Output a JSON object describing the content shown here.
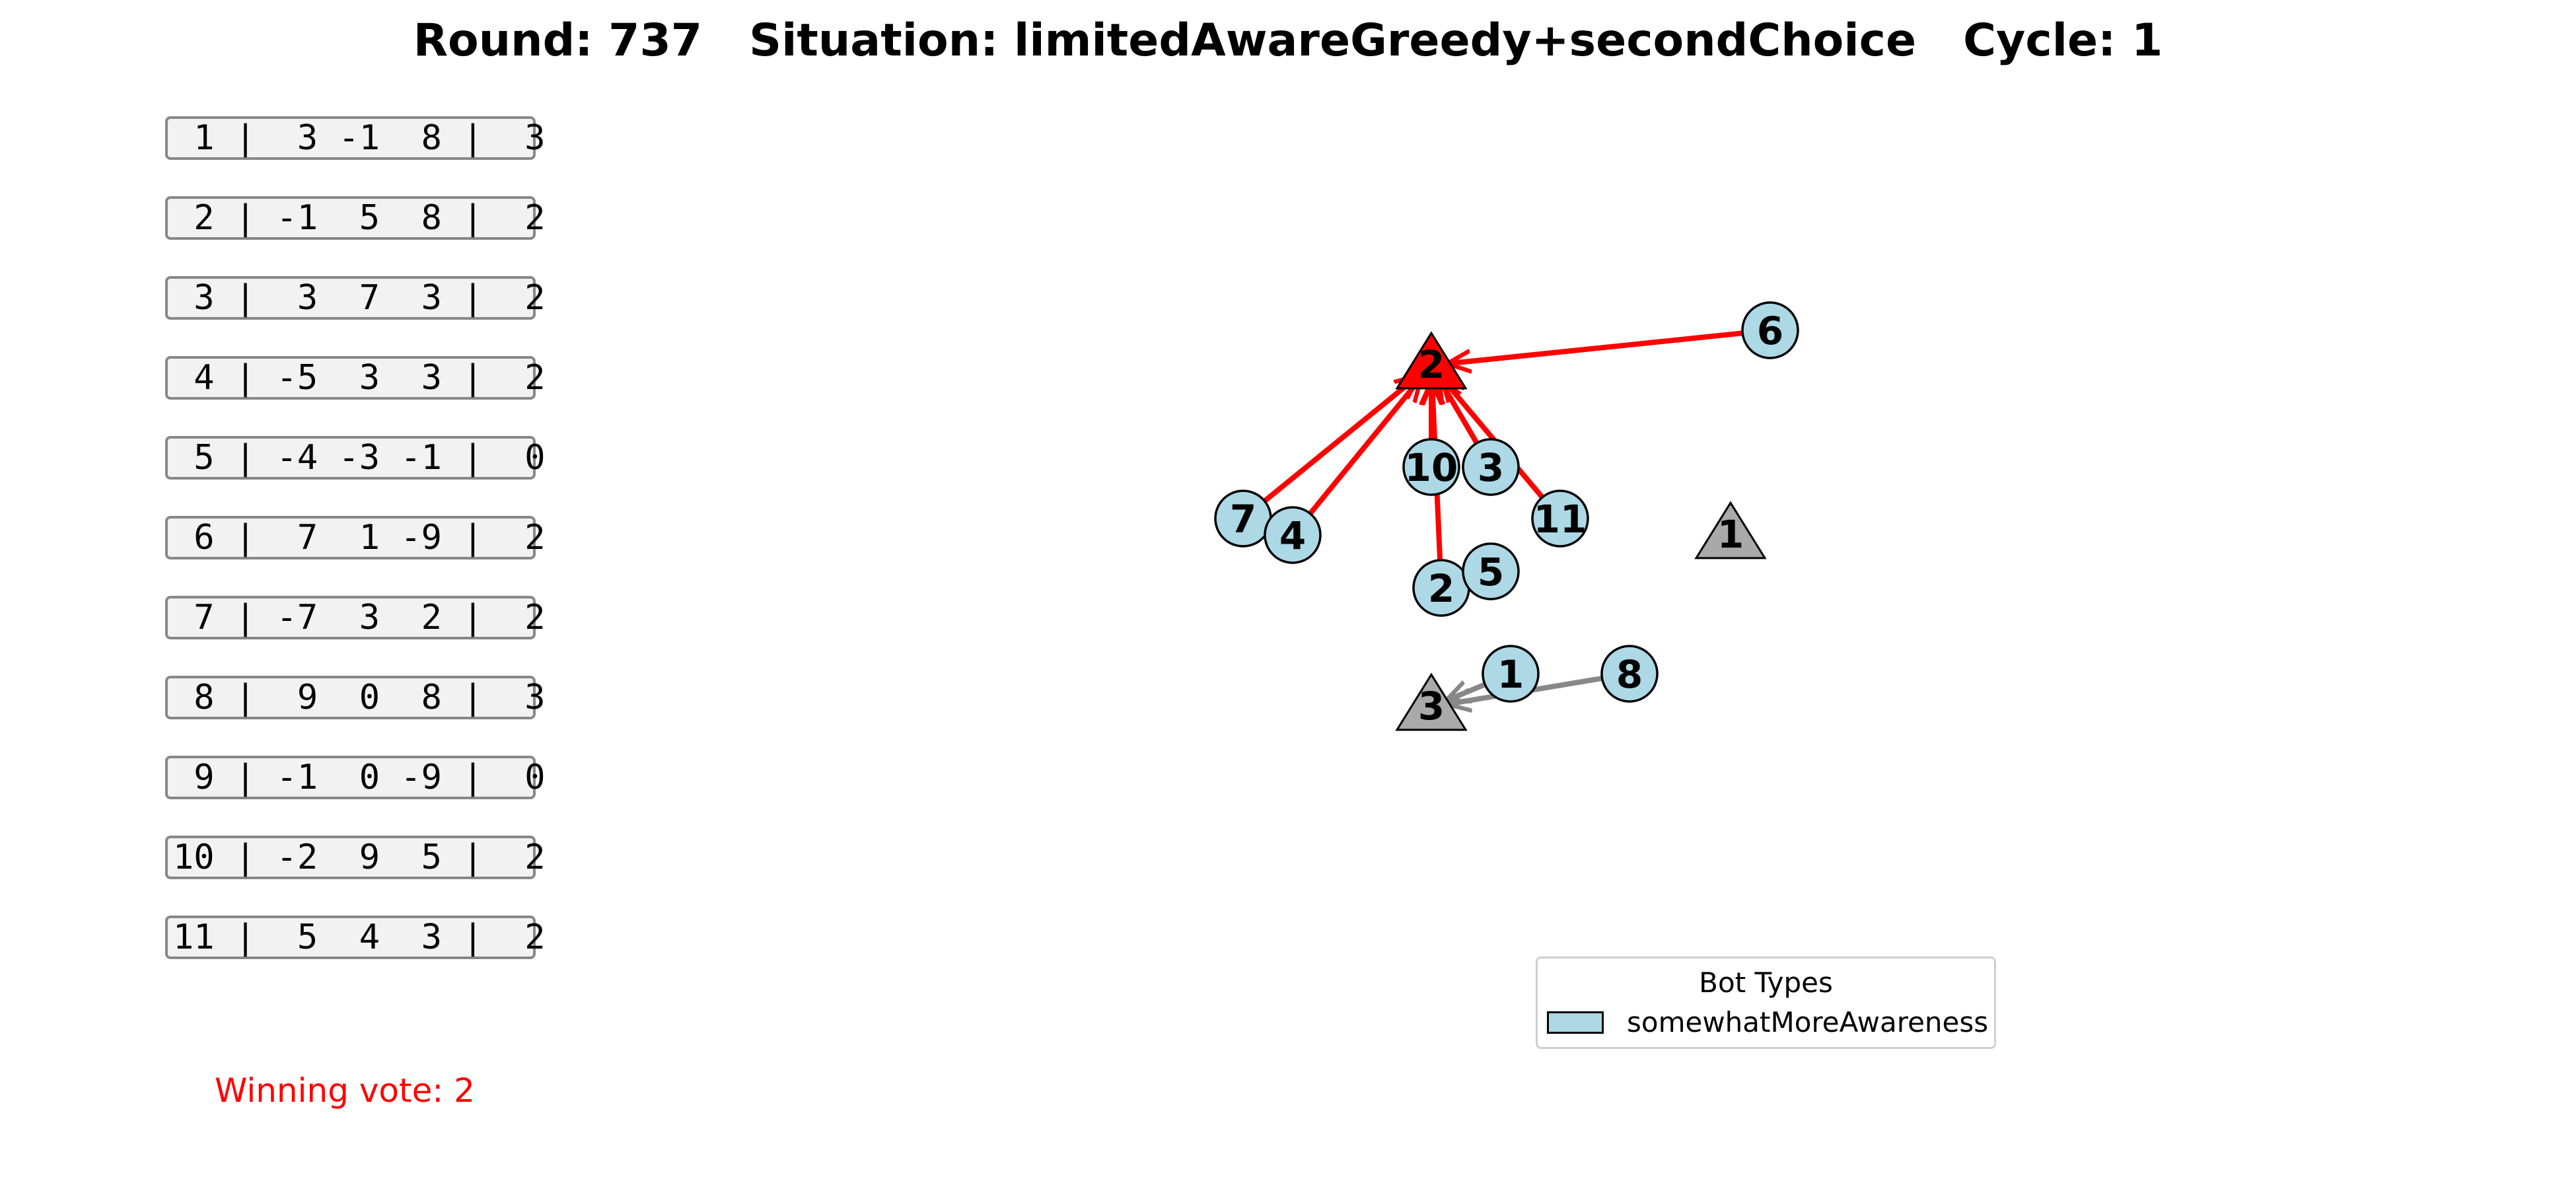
{
  "title": {
    "round": "Round: 737",
    "situation": "Situation: limitedAwareGreedy+secondChoice",
    "cycle": "Cycle: 1"
  },
  "vote_rows": [
    " 1 |  3 -1  8 |  3",
    " 2 | -1  5  8 |  2",
    " 3 |  3  7  3 |  2",
    " 4 | -5  3  3 |  2",
    " 5 | -4 -3 -1 |  0",
    " 6 |  7  1 -9 |  2",
    " 7 | -7  3  2 |  2",
    " 8 |  9  0  8 |  3",
    " 9 | -1  0 -9 |  0",
    "10 | -2  9  5 |  2",
    "11 |  5  4  3 |  2"
  ],
  "winning_vote": "Winning vote: 2",
  "legend": {
    "title": "Bot Types",
    "label": "somewhatMoreAwareness"
  },
  "colors": {
    "bot_fill": "#add8e6",
    "winner_fill": "#ff0000",
    "option_fill": "#a9a9a9",
    "winner_edge": "#ff0000",
    "other_edge": "#888888"
  },
  "graph": {
    "options": [
      {
        "label": "2",
        "winner": true
      },
      {
        "label": "1",
        "winner": false
      },
      {
        "label": "3",
        "winner": false
      }
    ],
    "bots": [
      "6",
      "10",
      "3",
      "7",
      "4",
      "11",
      "2",
      "5",
      "1",
      "8"
    ],
    "edges": [
      {
        "from": "6",
        "to": "2"
      },
      {
        "from": "7",
        "to": "2"
      },
      {
        "from": "4",
        "to": "2"
      },
      {
        "from": "10",
        "to": "2"
      },
      {
        "from": "3",
        "to": "2"
      },
      {
        "from": "11",
        "to": "2"
      },
      {
        "from": "2",
        "to": "2"
      },
      {
        "from": "1",
        "to": "3"
      },
      {
        "from": "8",
        "to": "3"
      }
    ]
  }
}
